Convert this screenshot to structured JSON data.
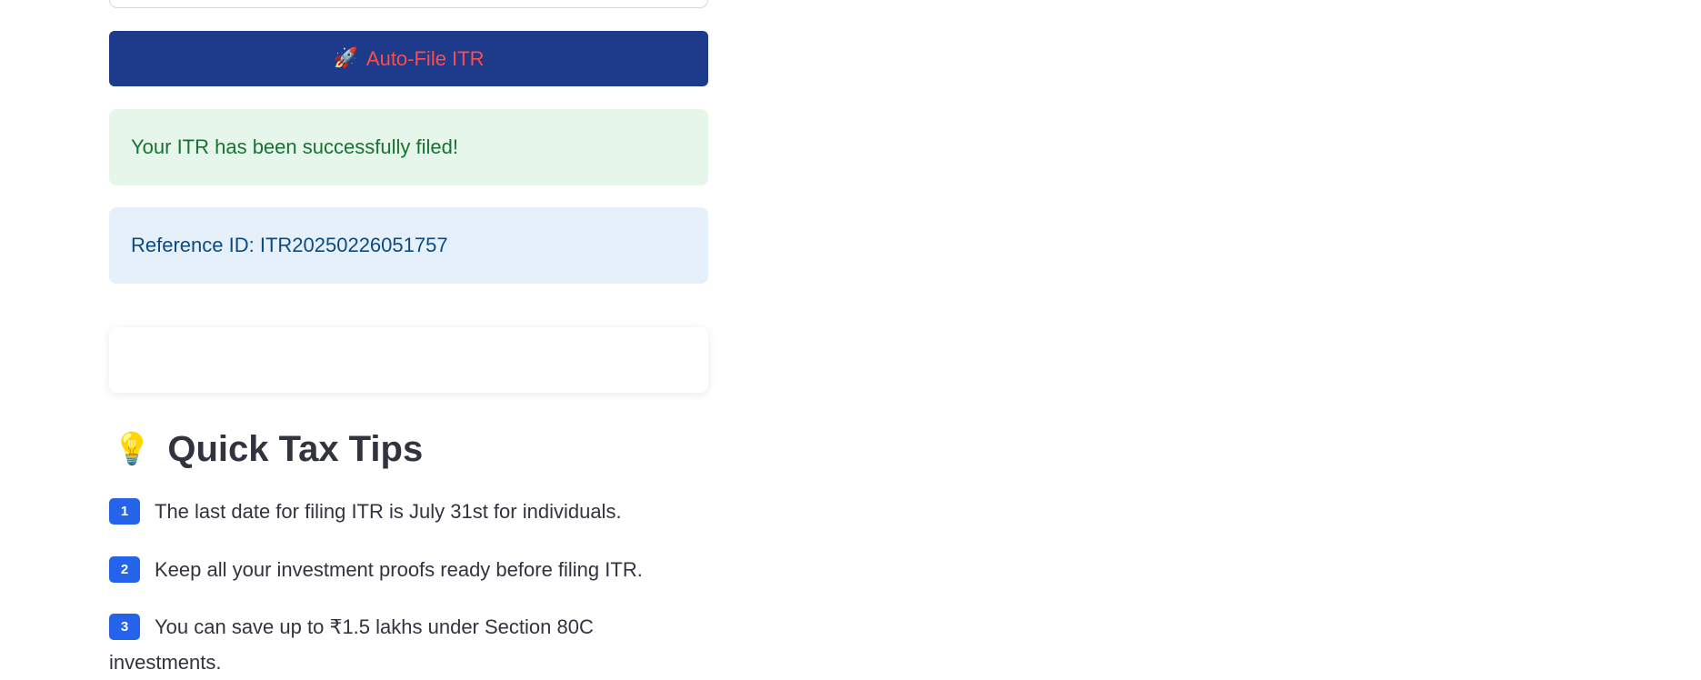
{
  "actions": {
    "autofile_label": "Auto-File ITR",
    "autofile_icon": "rocket-icon"
  },
  "alerts": {
    "success": "Your ITR has been successfully filed!",
    "reference": "Reference ID: ITR20250226051757"
  },
  "tips": {
    "heading": "Quick Tax Tips",
    "heading_icon": "lightbulb-icon",
    "items": [
      {
        "number": "1",
        "text": "The last date for filing ITR is July 31st for individuals."
      },
      {
        "number": "2",
        "text": "Keep all your investment proofs ready before filing ITR."
      },
      {
        "number": "3",
        "text": "You can save up to ₹1.5 lakhs under Section 80C investments."
      }
    ]
  },
  "colors": {
    "button_bg": "#1e3a8a",
    "button_text": "#ff4b4b",
    "success_bg": "#e6f6ea",
    "success_text": "#177233",
    "info_bg": "#e5f0fb",
    "info_text": "#0b4a83",
    "badge_bg": "#2563eb"
  }
}
